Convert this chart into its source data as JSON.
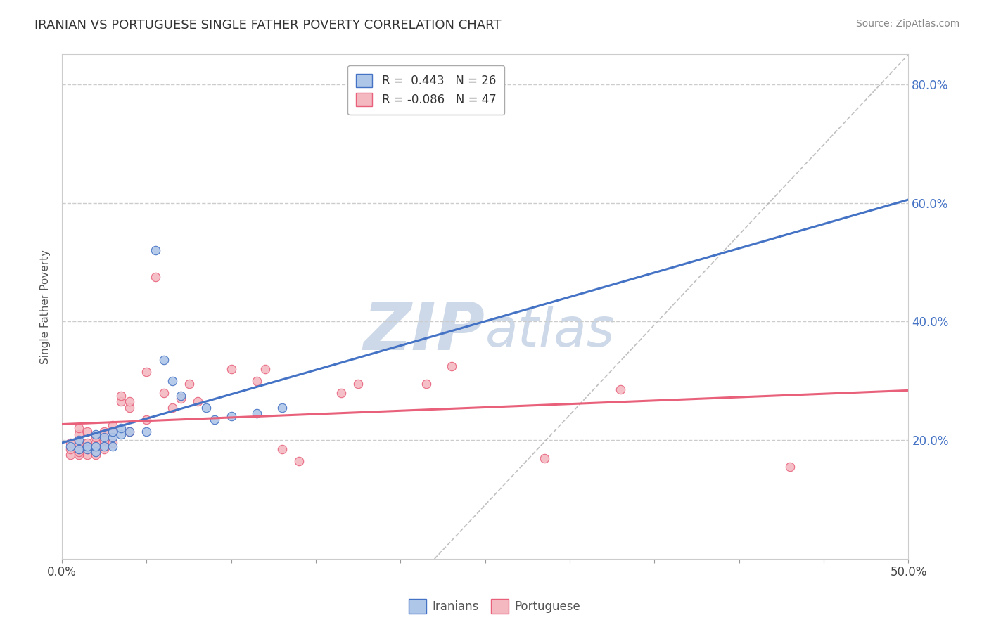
{
  "title": "IRANIAN VS PORTUGUESE SINGLE FATHER POVERTY CORRELATION CHART",
  "source": "Source: ZipAtlas.com",
  "ylabel": "Single Father Poverty",
  "legend_iranians": "Iranians",
  "legend_portuguese": "Portuguese",
  "r_iranian": "0.443",
  "n_iranian": "26",
  "r_portuguese": "-0.086",
  "n_portuguese": "47",
  "xmin": 0.0,
  "xmax": 0.5,
  "ymin": 0.0,
  "ymax": 0.85,
  "yticks": [
    0.2,
    0.4,
    0.6,
    0.8
  ],
  "ytick_labels": [
    "20.0%",
    "40.0%",
    "60.0%",
    "80.0%"
  ],
  "gridline_y": [
    0.2,
    0.4,
    0.6,
    0.8
  ],
  "iranian_color": "#aec6e8",
  "iranian_line_color": "#4472c4",
  "portuguese_color": "#f4b8c1",
  "portuguese_line_color": "#e8607a",
  "watermark_zip": "ZIP",
  "watermark_atlas": "atlas",
  "watermark_color": "#cdd9e8",
  "background_color": "#ffffff",
  "border_color": "#cccccc",
  "iranians_x": [
    0.005,
    0.01,
    0.01,
    0.015,
    0.015,
    0.02,
    0.02,
    0.02,
    0.025,
    0.025,
    0.03,
    0.03,
    0.03,
    0.035,
    0.035,
    0.04,
    0.05,
    0.055,
    0.06,
    0.065,
    0.07,
    0.085,
    0.09,
    0.1,
    0.115,
    0.13
  ],
  "iranians_y": [
    0.19,
    0.185,
    0.2,
    0.185,
    0.19,
    0.18,
    0.19,
    0.21,
    0.19,
    0.205,
    0.19,
    0.205,
    0.215,
    0.21,
    0.22,
    0.215,
    0.215,
    0.52,
    0.335,
    0.3,
    0.275,
    0.255,
    0.235,
    0.24,
    0.245,
    0.255
  ],
  "portuguese_x": [
    0.005,
    0.005,
    0.005,
    0.01,
    0.01,
    0.01,
    0.01,
    0.01,
    0.01,
    0.015,
    0.015,
    0.015,
    0.015,
    0.02,
    0.02,
    0.02,
    0.025,
    0.025,
    0.025,
    0.03,
    0.03,
    0.03,
    0.035,
    0.035,
    0.04,
    0.04,
    0.04,
    0.05,
    0.05,
    0.055,
    0.06,
    0.065,
    0.07,
    0.075,
    0.08,
    0.1,
    0.115,
    0.12,
    0.13,
    0.14,
    0.165,
    0.175,
    0.215,
    0.23,
    0.285,
    0.33,
    0.43
  ],
  "portuguese_y": [
    0.175,
    0.185,
    0.195,
    0.175,
    0.18,
    0.185,
    0.195,
    0.21,
    0.22,
    0.175,
    0.185,
    0.195,
    0.215,
    0.175,
    0.195,
    0.205,
    0.185,
    0.2,
    0.215,
    0.195,
    0.215,
    0.225,
    0.265,
    0.275,
    0.215,
    0.255,
    0.265,
    0.235,
    0.315,
    0.475,
    0.28,
    0.255,
    0.27,
    0.295,
    0.265,
    0.32,
    0.3,
    0.32,
    0.185,
    0.165,
    0.28,
    0.295,
    0.295,
    0.325,
    0.17,
    0.285,
    0.155
  ],
  "dashed_line_x1": 0.22,
  "dashed_line_y1": 0.0,
  "dashed_line_x2": 0.5,
  "dashed_line_y2": 0.85
}
